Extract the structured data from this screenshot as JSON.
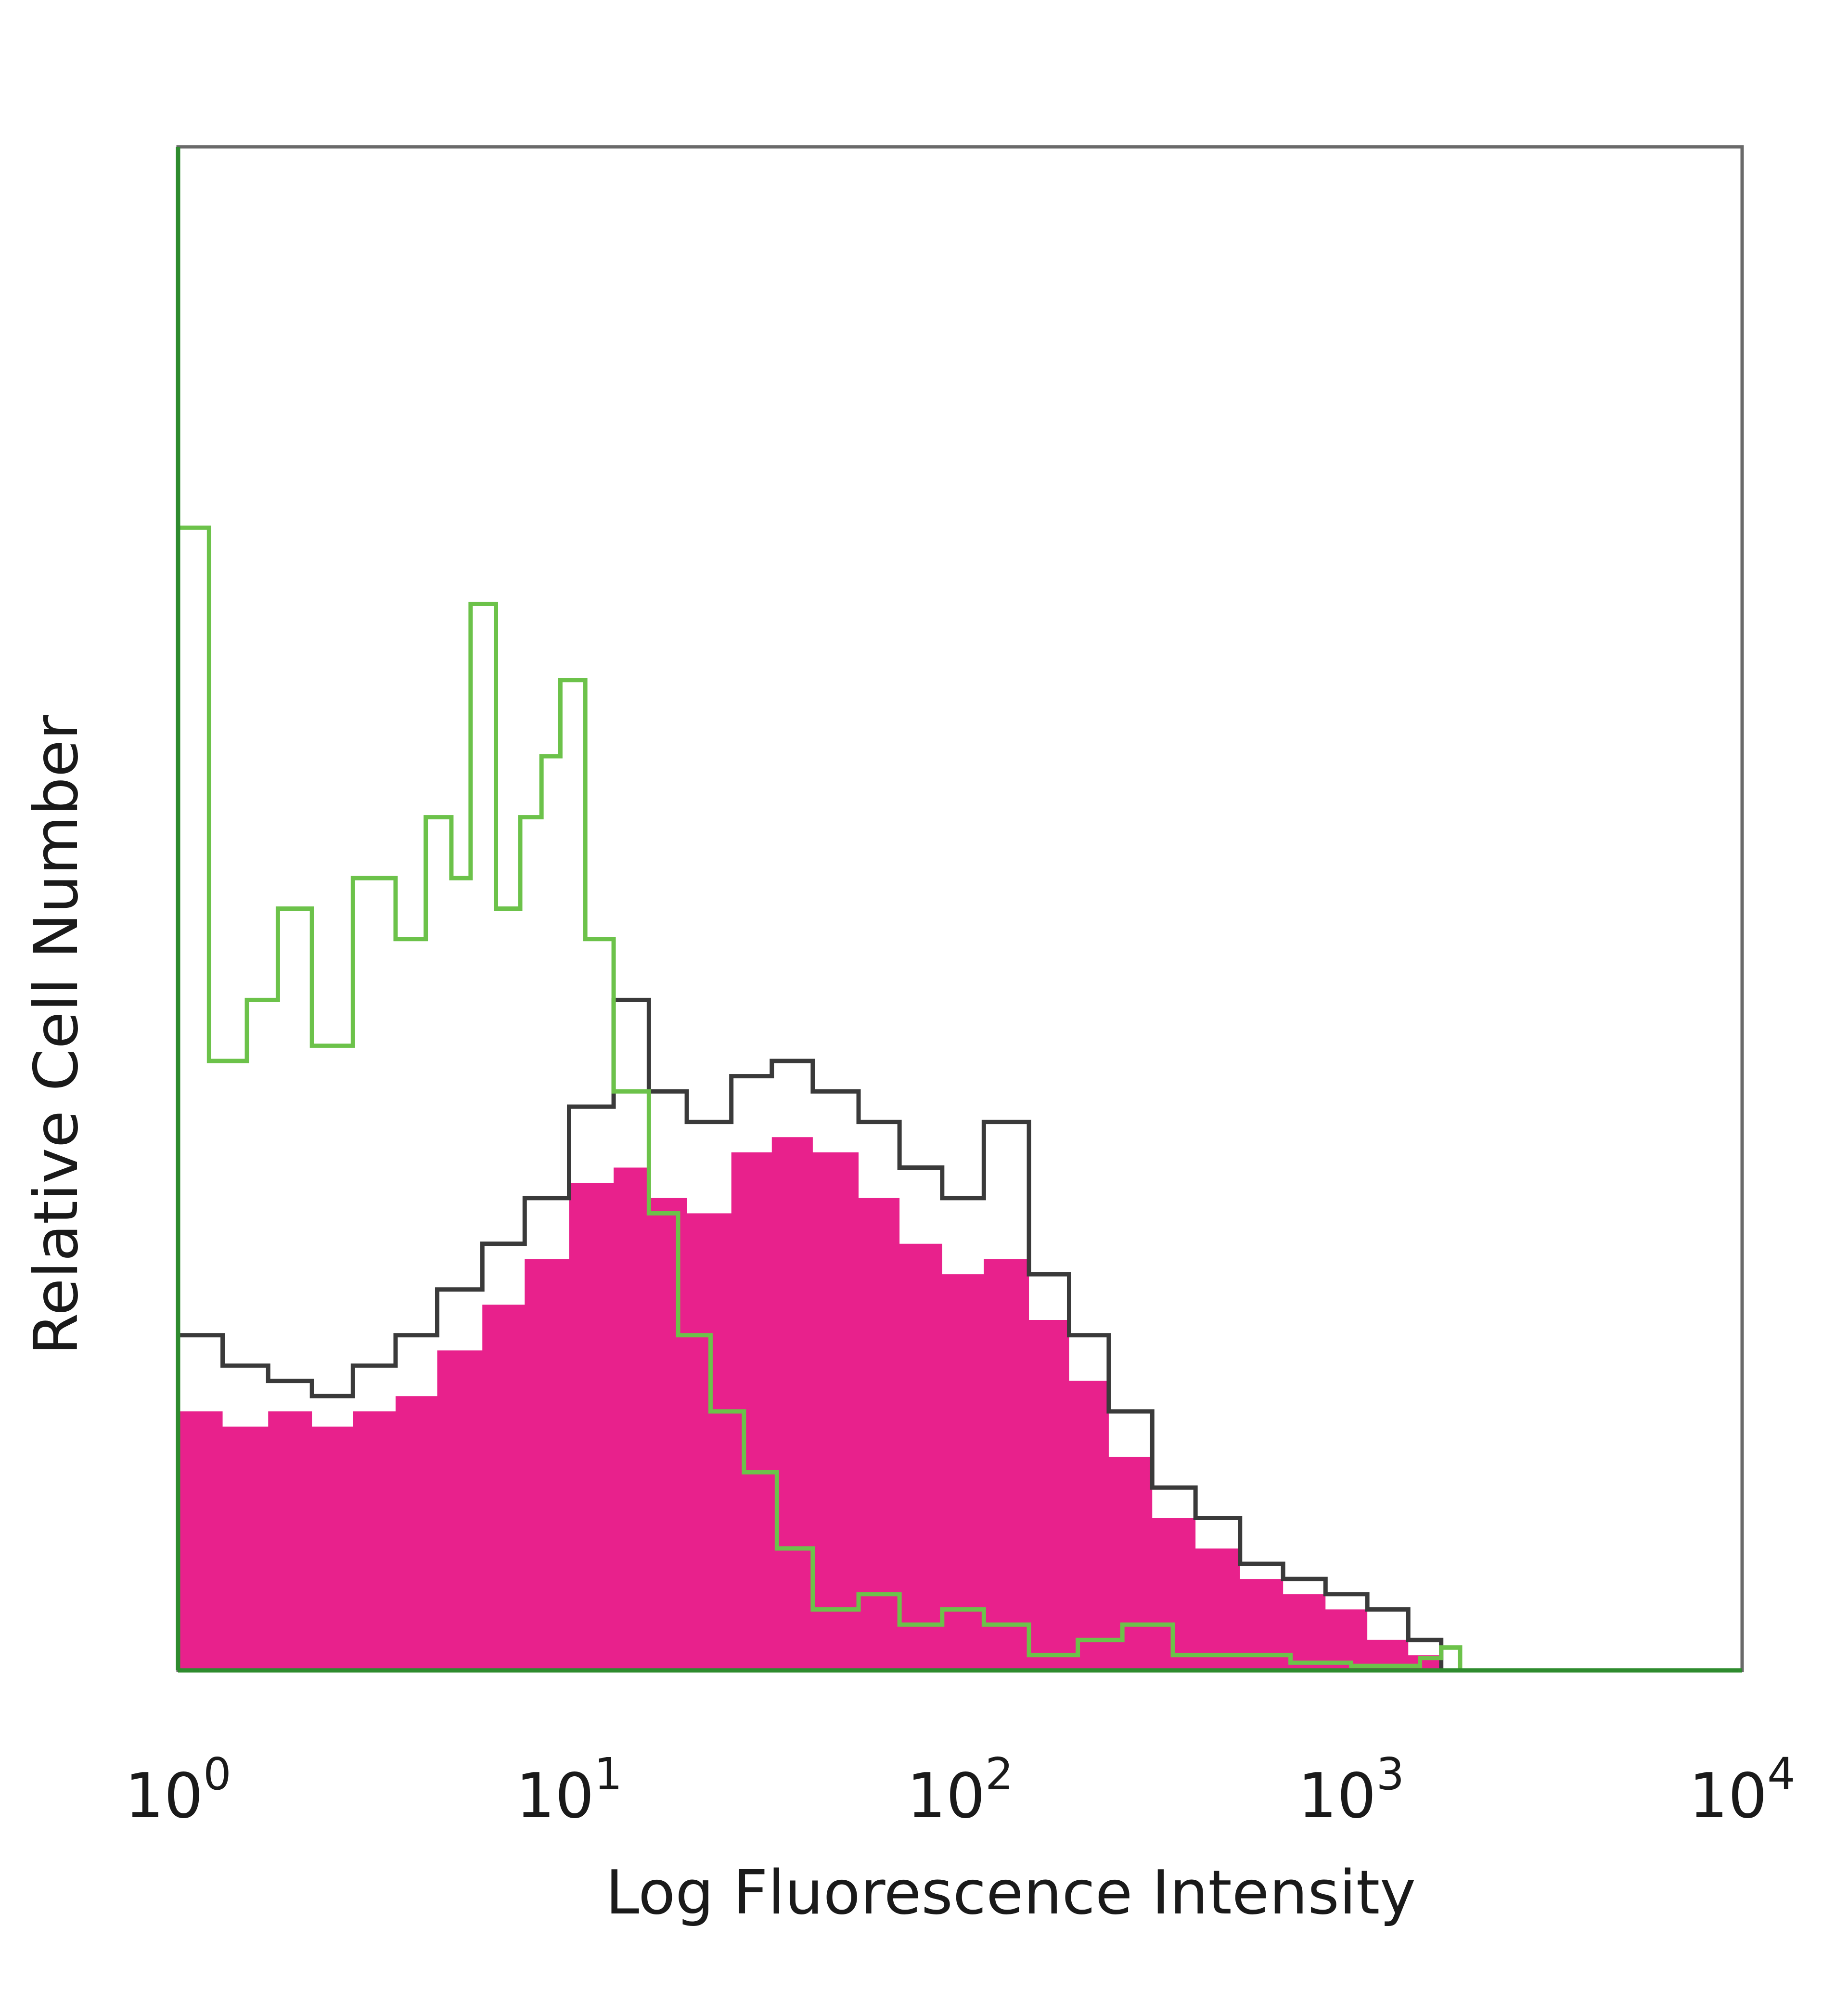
{
  "chart_data": {
    "type": "area",
    "xlabel": "Log Fluorescence Intensity",
    "ylabel": "Relative Cell Number",
    "x_scale": "log",
    "xlim": [
      1,
      10000
    ],
    "ylim": [
      0,
      100
    ],
    "grid": false,
    "x_ticks": [
      {
        "base": "10",
        "exp": "0"
      },
      {
        "base": "10",
        "exp": "1"
      },
      {
        "base": "10",
        "exp": "2"
      },
      {
        "base": "10",
        "exp": "3"
      },
      {
        "base": "10",
        "exp": "4"
      }
    ],
    "series": [
      {
        "color": "#e8218c",
        "style": "filled",
        "points": [
          [
            1.0,
            17
          ],
          [
            1.3,
            16
          ],
          [
            1.7,
            17
          ],
          [
            2.2,
            16
          ],
          [
            2.8,
            17
          ],
          [
            3.6,
            18
          ],
          [
            4.6,
            21
          ],
          [
            6.0,
            24
          ],
          [
            7.7,
            27
          ],
          [
            10,
            32
          ],
          [
            13,
            33
          ],
          [
            16,
            31
          ],
          [
            20,
            30
          ],
          [
            26,
            34
          ],
          [
            33,
            35
          ],
          [
            42,
            34
          ],
          [
            55,
            31
          ],
          [
            70,
            28
          ],
          [
            90,
            26
          ],
          [
            115,
            27
          ],
          [
            150,
            23
          ],
          [
            190,
            19
          ],
          [
            240,
            14
          ],
          [
            310,
            10
          ],
          [
            400,
            8
          ],
          [
            520,
            6
          ],
          [
            670,
            5
          ],
          [
            860,
            4
          ],
          [
            1100,
            2
          ],
          [
            1400,
            1
          ],
          [
            1700,
            0
          ]
        ]
      },
      {
        "color": "#3a3a3a",
        "style": "line",
        "points": [
          [
            1.0,
            22
          ],
          [
            1.3,
            20
          ],
          [
            1.7,
            19
          ],
          [
            2.2,
            18
          ],
          [
            2.8,
            20
          ],
          [
            3.6,
            22
          ],
          [
            4.6,
            25
          ],
          [
            6.0,
            28
          ],
          [
            7.7,
            31
          ],
          [
            10,
            37
          ],
          [
            13,
            44
          ],
          [
            16,
            38
          ],
          [
            20,
            36
          ],
          [
            26,
            39
          ],
          [
            33,
            40
          ],
          [
            42,
            38
          ],
          [
            55,
            36
          ],
          [
            70,
            33
          ],
          [
            90,
            31
          ],
          [
            115,
            36
          ],
          [
            150,
            26
          ],
          [
            190,
            22
          ],
          [
            240,
            17
          ],
          [
            310,
            12
          ],
          [
            400,
            10
          ],
          [
            520,
            7
          ],
          [
            670,
            6
          ],
          [
            860,
            5
          ],
          [
            1100,
            4
          ],
          [
            1400,
            2
          ],
          [
            1700,
            0
          ]
        ]
      },
      {
        "color": "#6cc24a",
        "style": "line",
        "points": [
          [
            1.0,
            75
          ],
          [
            1.2,
            40
          ],
          [
            1.5,
            44
          ],
          [
            1.8,
            50
          ],
          [
            2.2,
            41
          ],
          [
            2.8,
            52
          ],
          [
            3.6,
            48
          ],
          [
            4.3,
            56
          ],
          [
            5.0,
            52
          ],
          [
            5.6,
            70
          ],
          [
            6.5,
            50
          ],
          [
            7.5,
            56
          ],
          [
            8.5,
            60
          ],
          [
            9.5,
            65
          ],
          [
            11,
            48
          ],
          [
            13,
            38
          ],
          [
            16,
            30
          ],
          [
            19,
            22
          ],
          [
            23,
            17
          ],
          [
            28,
            13
          ],
          [
            34,
            8
          ],
          [
            42,
            4
          ],
          [
            55,
            5
          ],
          [
            70,
            3
          ],
          [
            90,
            4
          ],
          [
            115,
            3
          ],
          [
            150,
            1
          ],
          [
            200,
            2
          ],
          [
            260,
            3
          ],
          [
            350,
            1
          ],
          [
            500,
            1
          ],
          [
            700,
            0.5
          ],
          [
            1000,
            0.3
          ],
          [
            1500,
            0.8
          ],
          [
            1700,
            1.5
          ],
          [
            1900,
            0
          ]
        ]
      }
    ]
  }
}
